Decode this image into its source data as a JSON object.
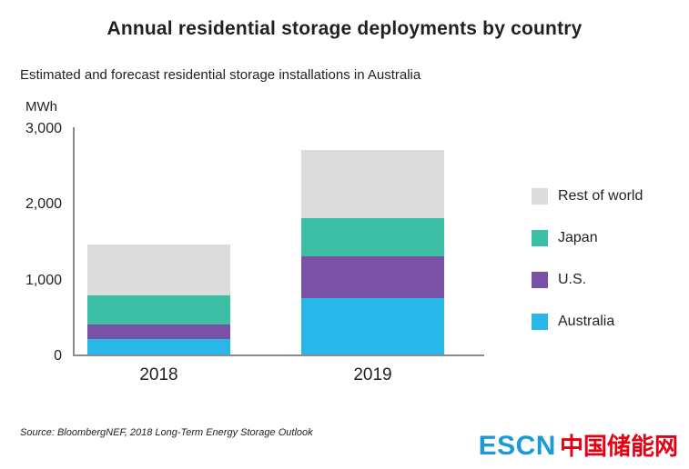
{
  "title": "Annual residential storage deployments by country",
  "subtitle": "Estimated and forecast residential storage installations in Australia",
  "unit_label": "MWh",
  "source": "Source: BloombergNEF, 2018 Long-Term Energy Storage Outlook",
  "logo": {
    "latin": "ESCN",
    "chinese": "中国储能网",
    "latin_color": "#1a9ad6",
    "chinese_color": "#e60012"
  },
  "chart_data": {
    "type": "bar",
    "stacked": true,
    "title": "Annual residential storage deployments by country",
    "subtitle": "Estimated and forecast residential storage installations in Australia",
    "ylabel": "MWh",
    "xlabel": "",
    "categories": [
      "2018",
      "2019"
    ],
    "series": [
      {
        "name": "Australia",
        "color": "#29b6e8",
        "values": [
          200,
          750
        ]
      },
      {
        "name": "U.S.",
        "color": "#7a52a5",
        "values": [
          200,
          550
        ]
      },
      {
        "name": "Japan",
        "color": "#3cbfa4",
        "values": [
          380,
          500
        ]
      },
      {
        "name": "Rest of world",
        "color": "#dcdcdc",
        "values": [
          670,
          900
        ]
      }
    ],
    "totals": [
      1450,
      2700
    ],
    "ylim": [
      0,
      3000
    ],
    "yticks": [
      0,
      1000,
      2000,
      3000
    ],
    "grid": false,
    "legend_position": "right",
    "legend_order": [
      "Rest of world",
      "Japan",
      "U.S.",
      "Australia"
    ]
  }
}
